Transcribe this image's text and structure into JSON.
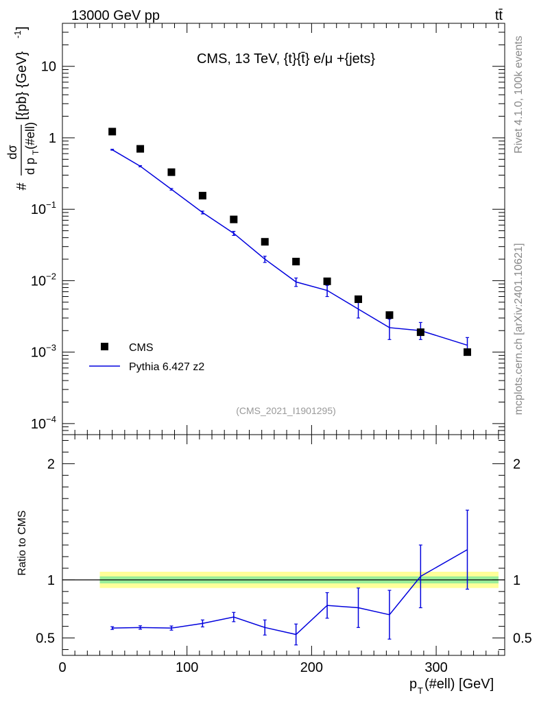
{
  "header": {
    "energy_label": "13000 GeV pp",
    "process_label": "tt̄"
  },
  "side_labels": {
    "rivet": "Rivet 4.1.0,  100k events",
    "mcplots": "mcplots.cern.ch [arXiv:2401.10621]"
  },
  "chart_data": [
    {
      "type": "scatter",
      "title": "CMS, 13 TeV, {t}{t̄} e/μ +{jets}",
      "analysis_label": "(CMS_2021_I1901295)",
      "ylabel_prefix": "#",
      "ylabel_num": "dσ",
      "ylabel_den": "d p",
      "ylabel_den_sub": "T",
      "ylabel_den_suffix": "(#ell)",
      "ylabel_units": "[{pb} {GeV}",
      "ylabel_units_sup": "-1",
      "ylabel_units_close": "]",
      "yscale": "log",
      "ylim": [
        7e-05,
        40
      ],
      "xlim": [
        0,
        355
      ],
      "yticks": [
        {
          "value": 10,
          "base": "10",
          "exp": ""
        },
        {
          "value": 1,
          "base": "1",
          "exp": ""
        },
        {
          "value": 0.1,
          "base": "10",
          "exp": "−1"
        },
        {
          "value": 0.01,
          "base": "10",
          "exp": "−2"
        },
        {
          "value": 0.001,
          "base": "10",
          "exp": "−3"
        },
        {
          "value": 0.0001,
          "base": "10",
          "exp": "−4"
        }
      ],
      "legend_position": "bottom-left",
      "series": [
        {
          "name": "CMS",
          "color": "#000000",
          "marker": "square",
          "x": [
            40,
            62.5,
            87.5,
            112.5,
            137.5,
            162.5,
            187.5,
            212.5,
            237.5,
            262.5,
            287.5,
            325
          ],
          "y": [
            1.22,
            0.7,
            0.33,
            0.155,
            0.072,
            0.035,
            0.0185,
            0.0098,
            0.0055,
            0.0033,
            0.0019,
            0.001
          ]
        },
        {
          "name": "Pythia 6.427 z2",
          "color": "#0000dd",
          "marker": "line",
          "x": [
            40,
            62.5,
            87.5,
            112.5,
            137.5,
            162.5,
            187.5,
            212.5,
            237.5,
            262.5,
            287.5,
            325
          ],
          "y": [
            0.68,
            0.4,
            0.19,
            0.09,
            0.046,
            0.02,
            0.0096,
            0.0073,
            0.004,
            0.0022,
            0.002,
            0.00125
          ],
          "yerr_lo": [
            0.01,
            0.008,
            0.005,
            0.004,
            0.003,
            0.002,
            0.0013,
            0.0013,
            0.001,
            0.0007,
            0.0005,
            0.00025
          ],
          "yerr_hi": [
            0.01,
            0.008,
            0.005,
            0.004,
            0.003,
            0.002,
            0.0013,
            0.0013,
            0.001,
            0.0007,
            0.0006,
            0.00035
          ]
        }
      ]
    },
    {
      "type": "line",
      "ylabel": "Ratio to CMS",
      "xlabel_main": "p",
      "xlabel_sub": "T",
      "xlabel_suffix": "(#ell) [GeV]",
      "xlim": [
        0,
        355
      ],
      "ylim": [
        0.35,
        2.25
      ],
      "xticks": [
        0,
        100,
        200,
        300
      ],
      "yticks": [
        0.5,
        1,
        2
      ],
      "band_yellow": [
        0.93,
        1.07
      ],
      "band_green": [
        0.97,
        1.03
      ],
      "band_x": [
        30,
        350
      ],
      "series": [
        {
          "name": "Pythia 6.427 z2",
          "color": "#0000dd",
          "x": [
            40,
            62.5,
            87.5,
            112.5,
            137.5,
            162.5,
            187.5,
            212.5,
            237.5,
            262.5,
            287.5,
            325
          ],
          "y": [
            0.585,
            0.59,
            0.585,
            0.625,
            0.68,
            0.59,
            0.53,
            0.78,
            0.76,
            0.7,
            1.03,
            1.26
          ],
          "yerr": [
            0.012,
            0.015,
            0.018,
            0.03,
            0.04,
            0.065,
            0.09,
            0.11,
            0.17,
            0.21,
            0.27,
            0.34
          ]
        }
      ]
    }
  ]
}
